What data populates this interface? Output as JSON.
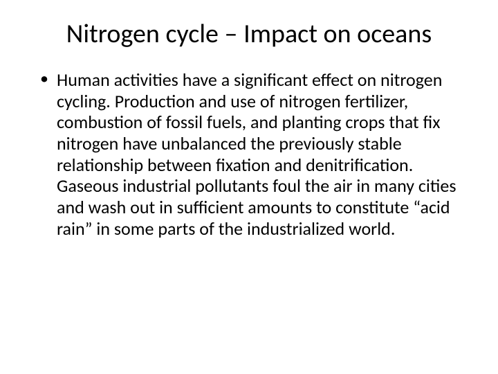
{
  "slide": {
    "title": "Nitrogen cycle – Impact on oceans",
    "bullets": [
      "Human activities have a significant effect on nitrogen cycling. Production and use of nitrogen fertilizer, combustion of fossil fuels, and planting crops that fix nitrogen have unbalanced the previously stable relationship between fixation and denitrification. Gaseous industrial pollutants foul the air in many cities and wash out in sufficient amounts to constitute “acid rain” in some parts of the industrialized world."
    ],
    "colors": {
      "background": "#ffffff",
      "text": "#000000"
    },
    "typography": {
      "title_fontsize": 38,
      "body_fontsize": 26,
      "font_family": "Calibri"
    }
  }
}
